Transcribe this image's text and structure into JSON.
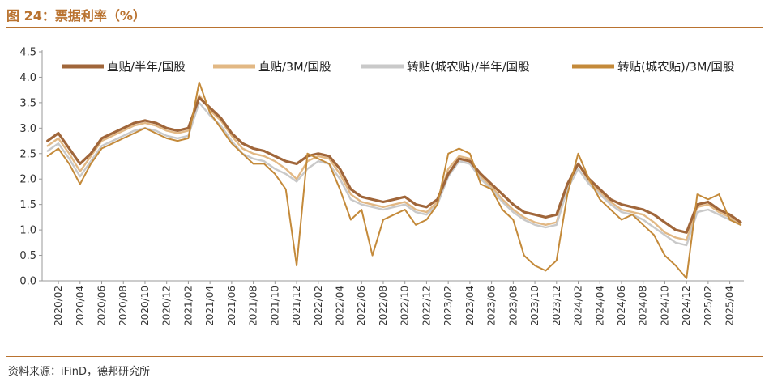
{
  "figure": {
    "title": "图 24：票据利率（%）",
    "source": "资料来源：iFinD，德邦研究所"
  },
  "colors": {
    "accent": "#b9722f",
    "series": [
      "#a0663a",
      "#e2b884",
      "#c9c9c9",
      "#c48a3a"
    ]
  },
  "chart_data": {
    "type": "line",
    "title": "",
    "xlabel": "",
    "ylabel": "",
    "ylim": [
      0.0,
      4.5
    ],
    "yticks": [
      "0.0",
      "0.5",
      "1.0",
      "1.5",
      "2.0",
      "2.5",
      "3.0",
      "3.5",
      "4.0",
      "4.5"
    ],
    "xticks": [
      "2020/02",
      "2020/04",
      "2020/06",
      "2020/08",
      "2020/10",
      "2020/12",
      "2021/02",
      "2021/04",
      "2021/06",
      "2021/08",
      "2021/10",
      "2021/12",
      "2022/02",
      "2022/04",
      "2022/06",
      "2022/08",
      "2022/10",
      "2022/12",
      "2023/02",
      "2023/04",
      "2023/06",
      "2023/08",
      "2023/10",
      "2023/12",
      "2024/02",
      "2024/04",
      "2024/06",
      "2024/08",
      "2024/10",
      "2024/12",
      "2025/02",
      "2025/04"
    ],
    "grid": false,
    "legend": "top",
    "x": [
      "2020-01",
      "2020-02",
      "2020-03",
      "2020-04",
      "2020-05",
      "2020-06",
      "2020-07",
      "2020-08",
      "2020-09",
      "2020-10",
      "2020-11",
      "2020-12",
      "2021-01",
      "2021-02",
      "2021-03",
      "2021-04",
      "2021-05",
      "2021-06",
      "2021-07",
      "2021-08",
      "2021-09",
      "2021-10",
      "2021-11",
      "2021-12",
      "2022-01",
      "2022-02",
      "2022-03",
      "2022-04",
      "2022-05",
      "2022-06",
      "2022-07",
      "2022-08",
      "2022-09",
      "2022-10",
      "2022-11",
      "2022-12",
      "2023-01",
      "2023-02",
      "2023-03",
      "2023-04",
      "2023-05",
      "2023-06",
      "2023-07",
      "2023-08",
      "2023-09",
      "2023-10",
      "2023-11",
      "2023-12",
      "2024-01",
      "2024-02",
      "2024-03",
      "2024-04",
      "2024-05",
      "2024-06",
      "2024-07",
      "2024-08",
      "2024-09",
      "2024-10",
      "2024-11",
      "2024-12",
      "2025-01",
      "2025-02",
      "2025-03",
      "2025-04",
      "2025-05"
    ],
    "series": [
      {
        "name": "直贴/半年/国股",
        "values": [
          2.75,
          2.9,
          2.6,
          2.3,
          2.5,
          2.8,
          2.9,
          3.0,
          3.1,
          3.15,
          3.1,
          3.0,
          2.95,
          3.0,
          3.6,
          3.4,
          3.2,
          2.9,
          2.7,
          2.6,
          2.55,
          2.45,
          2.35,
          2.3,
          2.45,
          2.5,
          2.45,
          2.2,
          1.8,
          1.65,
          1.6,
          1.55,
          1.6,
          1.65,
          1.5,
          1.45,
          1.6,
          2.1,
          2.4,
          2.35,
          2.1,
          1.9,
          1.7,
          1.5,
          1.35,
          1.3,
          1.25,
          1.3,
          1.9,
          2.3,
          2.0,
          1.8,
          1.6,
          1.5,
          1.45,
          1.4,
          1.3,
          1.15,
          1.0,
          0.95,
          1.5,
          1.55,
          1.4,
          1.3,
          1.15
        ]
      },
      {
        "name": "直贴/3M/国股",
        "values": [
          2.65,
          2.8,
          2.5,
          2.15,
          2.45,
          2.75,
          2.85,
          2.95,
          3.05,
          3.1,
          3.05,
          2.95,
          2.9,
          2.95,
          3.65,
          3.35,
          3.15,
          2.85,
          2.6,
          2.5,
          2.45,
          2.35,
          2.2,
          2.0,
          2.35,
          2.45,
          2.4,
          2.1,
          1.7,
          1.55,
          1.5,
          1.45,
          1.5,
          1.55,
          1.4,
          1.35,
          1.55,
          2.2,
          2.45,
          2.4,
          2.05,
          1.85,
          1.6,
          1.4,
          1.25,
          1.15,
          1.1,
          1.15,
          1.85,
          2.3,
          1.95,
          1.75,
          1.55,
          1.4,
          1.35,
          1.3,
          1.15,
          0.95,
          0.85,
          0.8,
          1.45,
          1.5,
          1.35,
          1.25,
          1.1
        ]
      },
      {
        "name": "转贴(城农贴)/半年/国股",
        "values": [
          2.55,
          2.7,
          2.4,
          2.05,
          2.35,
          2.65,
          2.75,
          2.85,
          2.95,
          3.0,
          2.95,
          2.85,
          2.8,
          2.85,
          3.5,
          3.25,
          3.05,
          2.75,
          2.5,
          2.4,
          2.35,
          2.2,
          2.1,
          1.95,
          2.2,
          2.35,
          2.3,
          2.0,
          1.6,
          1.5,
          1.45,
          1.4,
          1.45,
          1.5,
          1.35,
          1.3,
          1.5,
          2.05,
          2.35,
          2.3,
          2.0,
          1.8,
          1.55,
          1.35,
          1.2,
          1.1,
          1.05,
          1.1,
          1.8,
          2.2,
          1.9,
          1.7,
          1.5,
          1.35,
          1.3,
          1.2,
          1.05,
          0.9,
          0.75,
          0.7,
          1.35,
          1.4,
          1.3,
          1.2,
          1.1
        ]
      },
      {
        "name": "转贴(城农贴)/3M/国股",
        "values": [
          2.45,
          2.6,
          2.3,
          1.9,
          2.3,
          2.6,
          2.7,
          2.8,
          2.9,
          3.0,
          2.9,
          2.8,
          2.75,
          2.8,
          3.9,
          3.3,
          3.0,
          2.7,
          2.5,
          2.3,
          2.3,
          2.1,
          1.8,
          0.3,
          2.5,
          2.4,
          2.3,
          1.8,
          1.2,
          1.4,
          0.5,
          1.2,
          1.3,
          1.4,
          1.1,
          1.2,
          1.5,
          2.5,
          2.6,
          2.5,
          1.9,
          1.8,
          1.4,
          1.2,
          0.5,
          0.3,
          0.2,
          0.4,
          1.7,
          2.5,
          2.0,
          1.6,
          1.4,
          1.2,
          1.3,
          1.1,
          0.9,
          0.5,
          0.3,
          0.05,
          1.7,
          1.6,
          1.7,
          1.2,
          1.1
        ]
      }
    ]
  }
}
